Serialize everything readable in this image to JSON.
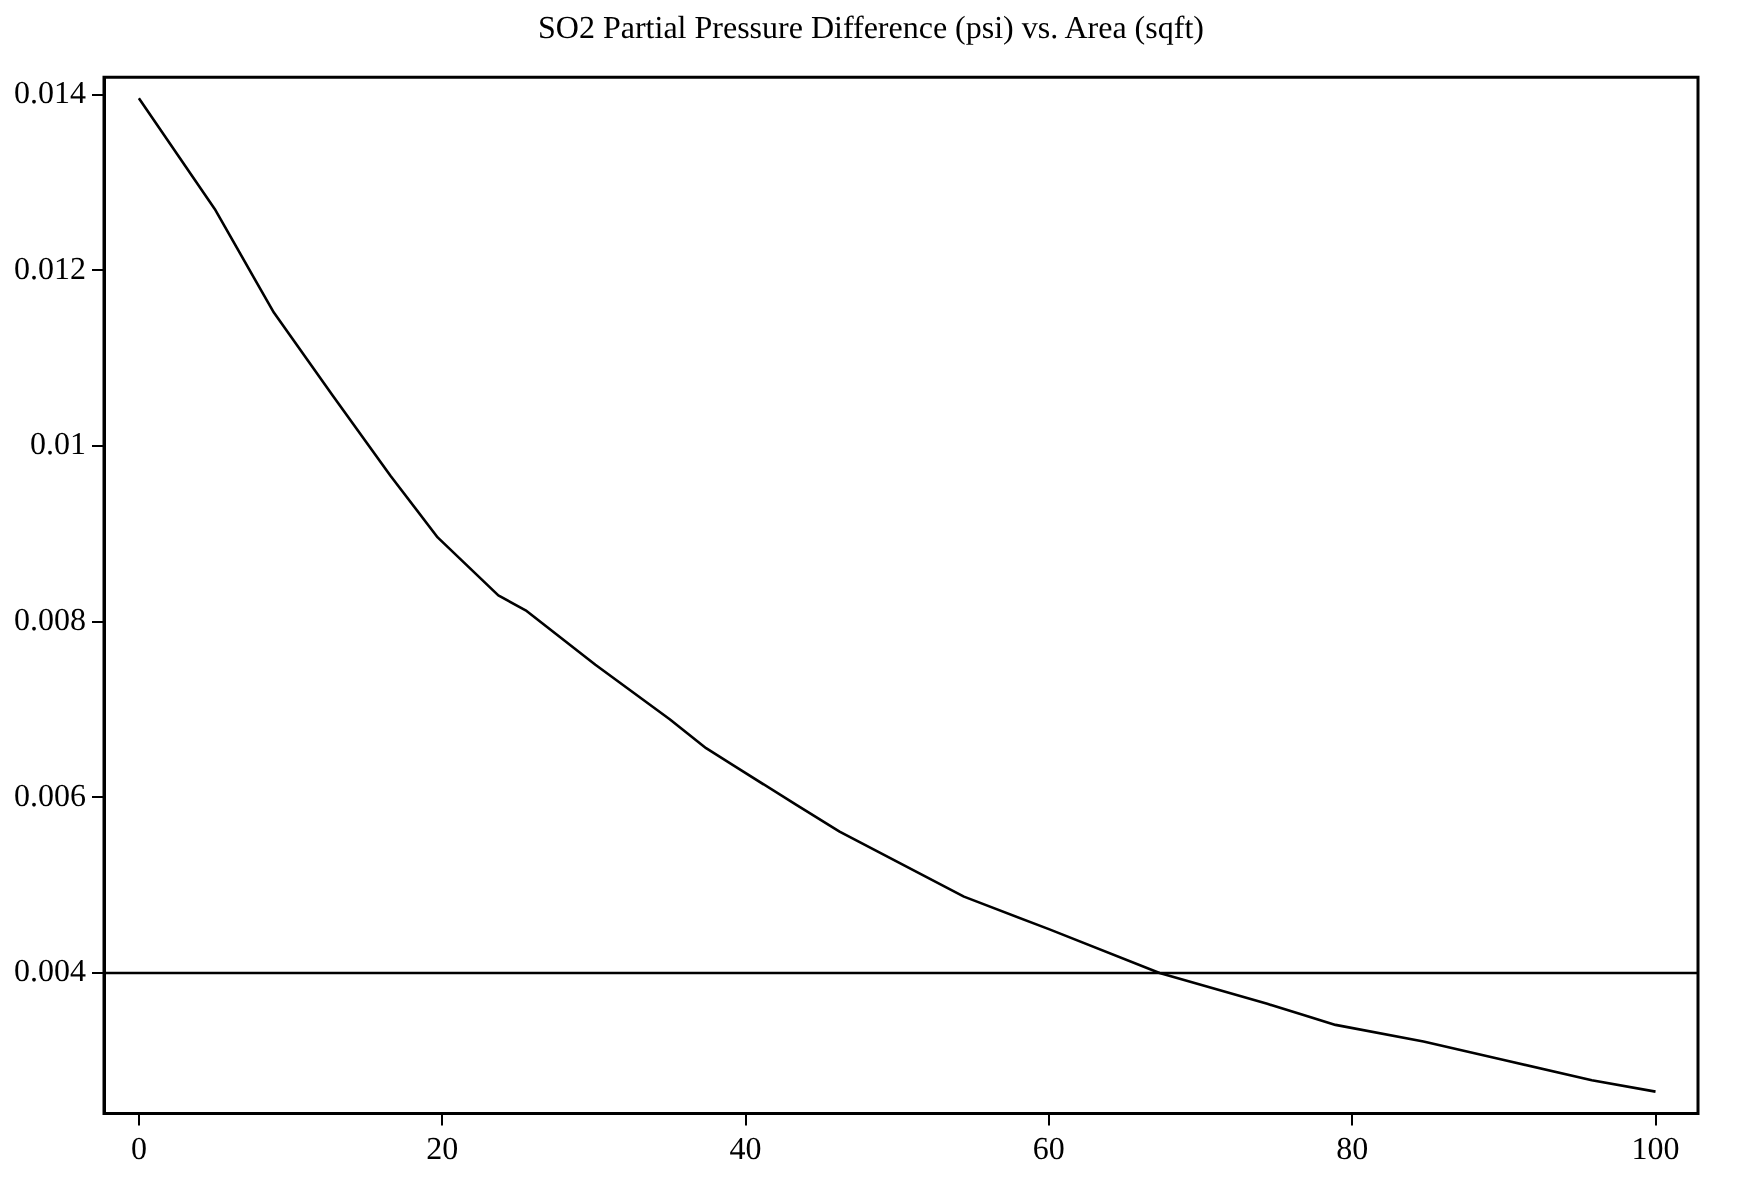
{
  "chart_data": {
    "type": "line",
    "title": "SO2 Partial Pressure Difference (psi) vs. Area (sqft)",
    "x": [
      0,
      5,
      8.9,
      12.8,
      16.6,
      19.7,
      23.7,
      25.5,
      30.1,
      35,
      37.4,
      43.3,
      46.2,
      54.4,
      60,
      67.3,
      74.4,
      78.9,
      84.7,
      90,
      95.8,
      100
    ],
    "series": [
      {
        "color": "#000000",
        "values": [
          0.01396,
          0.0127,
          0.01152,
          0.01057,
          0.00966,
          0.00896,
          0.0083,
          0.00813,
          0.00751,
          0.00689,
          0.00656,
          0.00592,
          0.00561,
          0.00487,
          0.0045,
          0.004,
          0.00365,
          0.00341,
          0.00322,
          0.00301,
          0.00278,
          0.00265
        ]
      }
    ],
    "xlim": [
      -2.3,
      102.8
    ],
    "xticks": [
      0,
      20,
      40,
      60,
      80,
      100
    ],
    "ylim": [
      0.0024,
      0.0142
    ],
    "yticks": [
      0.004,
      0.006,
      0.008,
      0.01,
      0.012,
      0.014
    ],
    "ref_lines": [
      {
        "axis": "y",
        "value": 0.004,
        "color": "#000000"
      }
    ],
    "grid": false,
    "legend": false,
    "marker": "none",
    "line_style": "solid"
  }
}
